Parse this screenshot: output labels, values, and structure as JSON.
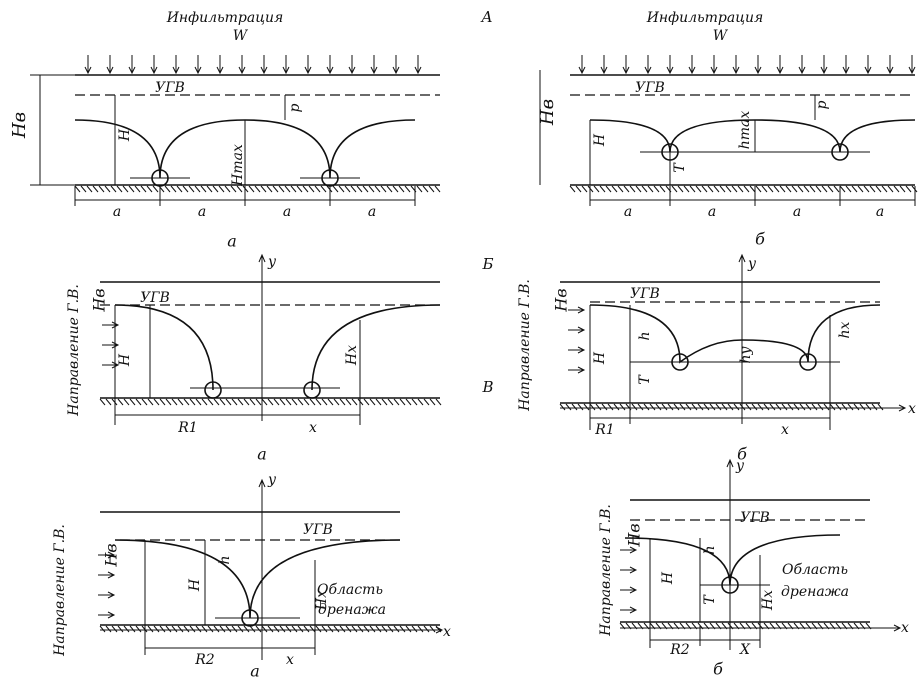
{
  "sections": [
    "А",
    "Б",
    "В"
  ],
  "panels": [
    {
      "labels": [
        "Инфильтрация",
        "W",
        "Hв",
        "УГВ",
        "р",
        "H",
        "Hmax",
        "a",
        "a",
        "a",
        "a",
        "а"
      ]
    },
    {
      "labels": [
        "Инфильтрация",
        "W",
        "Hв",
        "УГВ",
        "р",
        "H",
        "hmax",
        "T",
        "a",
        "a",
        "a",
        "a",
        "б"
      ]
    },
    {
      "labels": [
        "y",
        "Направление Г.В.",
        "Hв",
        "УГВ",
        "H",
        "Hx",
        "R1",
        "x",
        "а"
      ]
    },
    {
      "labels": [
        "y",
        "x",
        "Направление Г.В.",
        "Hв",
        "УГВ",
        "H",
        "h",
        "hy",
        "hx",
        "T",
        "R1",
        "x",
        "б"
      ]
    },
    {
      "labels": [
        "y",
        "x",
        "Направление Г.В.",
        "Hв",
        "УГВ",
        "H",
        "h",
        "Hx",
        "Область",
        "дренажа",
        "R2",
        "x",
        "а"
      ]
    },
    {
      "labels": [
        "y",
        "x",
        "Направление Г.В.",
        "Hв",
        "УГВ",
        "H",
        "h",
        "T",
        "Hx",
        "Область",
        "дренажа",
        "R2",
        "X",
        "б"
      ]
    }
  ]
}
